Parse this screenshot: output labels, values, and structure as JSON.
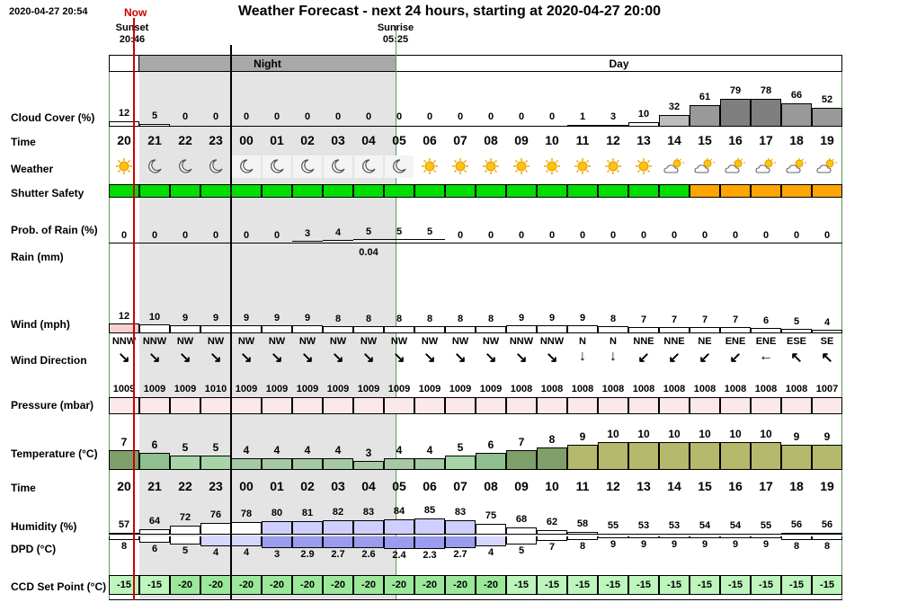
{
  "header": {
    "timestamp": "2020-04-27 20:54",
    "now_label": "Now",
    "title": "Weather Forecast - next 24 hours, starting at 2020-04-27 20:00",
    "sunset_label": "Sunset",
    "sunset_time": "20:46",
    "sunrise_label": "Sunrise",
    "sunrise_time": "05:25"
  },
  "bands": {
    "night": "Night",
    "day": "Day"
  },
  "labels": {
    "cloud_cover": "Cloud Cover (%)",
    "time": "Time",
    "weather": "Weather",
    "shutter_safety": "Shutter Safety",
    "prob_rain": "Prob. of Rain (%)",
    "rain": "Rain (mm)",
    "wind": "Wind (mph)",
    "wind_direction": "Wind Direction",
    "pressure": "Pressure (mbar)",
    "temperature": "Temperature (°C)",
    "time2": "Time",
    "humidity": "Humidity (%)",
    "dpd": "DPD (°C)",
    "ccd": "CCD Set Point (°C)"
  },
  "hours": [
    "20",
    "21",
    "22",
    "23",
    "00",
    "01",
    "02",
    "03",
    "04",
    "05",
    "06",
    "07",
    "08",
    "09",
    "10",
    "11",
    "12",
    "13",
    "14",
    "15",
    "16",
    "17",
    "18",
    "19"
  ],
  "cloud_cover": [
    "12",
    "5",
    "0",
    "0",
    "0",
    "0",
    "0",
    "0",
    "0",
    "0",
    "0",
    "0",
    "0",
    "0",
    "0",
    "1",
    "3",
    "10",
    "32",
    "61",
    "79",
    "78",
    "66",
    "52"
  ],
  "weather_icons": [
    "sun-icon",
    "moon-icon",
    "moon-icon",
    "moon-icon",
    "moon-icon",
    "moon-icon",
    "moon-icon",
    "moon-icon",
    "moon-icon",
    "moon-icon",
    "sun-icon",
    "sun-icon",
    "sun-icon",
    "sun-icon",
    "sun-icon",
    "sun-icon",
    "sun-icon",
    "sun-icon",
    "partly-cloudy-icon",
    "partly-cloudy-icon",
    "partly-cloudy-icon",
    "partly-cloudy-icon",
    "partly-cloudy-icon",
    "partly-cloudy-icon"
  ],
  "shutter_safety": [
    "safe",
    "safe",
    "safe",
    "safe",
    "safe",
    "safe",
    "safe",
    "safe",
    "safe",
    "safe",
    "safe",
    "safe",
    "safe",
    "safe",
    "safe",
    "safe",
    "safe",
    "safe",
    "safe",
    "caution",
    "caution",
    "caution",
    "caution",
    "caution"
  ],
  "shutter_colors": {
    "safe": "#00dd00",
    "caution": "#ffa500"
  },
  "prob_rain": [
    "0",
    "0",
    "0",
    "0",
    "0",
    "0",
    "3",
    "4",
    "5",
    "5",
    "5",
    "0",
    "0",
    "0",
    "0",
    "0",
    "0",
    "0",
    "0",
    "0",
    "0",
    "0",
    "0",
    "0"
  ],
  "rain": [
    "",
    "",
    "",
    "",
    "",
    "",
    "",
    "",
    "0.04",
    "",
    "",
    "",
    "",
    "",
    "",
    "",
    "",
    "",
    "",
    "",
    "",
    "",
    "",
    ""
  ],
  "wind": [
    "12",
    "10",
    "9",
    "9",
    "9",
    "9",
    "9",
    "8",
    "8",
    "8",
    "8",
    "8",
    "8",
    "9",
    "9",
    "9",
    "8",
    "7",
    "7",
    "7",
    "7",
    "6",
    "5",
    "4"
  ],
  "wind_dir": [
    "NNW",
    "NNW",
    "NW",
    "NW",
    "NW",
    "NW",
    "NW",
    "NW",
    "NW",
    "NW",
    "NW",
    "NW",
    "NW",
    "NNW",
    "NNW",
    "N",
    "N",
    "NNE",
    "NNE",
    "NE",
    "ENE",
    "ENE",
    "ESE",
    "SE"
  ],
  "wind_arrows": [
    "↘",
    "↘",
    "↘",
    "↘",
    "↘",
    "↘",
    "↘",
    "↘",
    "↘",
    "↘",
    "↘",
    "↘",
    "↘",
    "↘",
    "↘",
    "↓",
    "↓",
    "↙",
    "↙",
    "↙",
    "↙",
    "←",
    "↖",
    "↖"
  ],
  "pressure": [
    "1009",
    "1009",
    "1009",
    "1010",
    "1009",
    "1009",
    "1009",
    "1009",
    "1009",
    "1009",
    "1009",
    "1009",
    "1009",
    "1008",
    "1008",
    "1008",
    "1008",
    "1008",
    "1008",
    "1008",
    "1008",
    "1008",
    "1008",
    "1007"
  ],
  "temperature": [
    "7",
    "6",
    "5",
    "5",
    "4",
    "4",
    "4",
    "4",
    "3",
    "4",
    "4",
    "5",
    "6",
    "7",
    "8",
    "9",
    "10",
    "10",
    "10",
    "10",
    "10",
    "10",
    "9",
    "9"
  ],
  "humidity": [
    "57",
    "64",
    "72",
    "76",
    "78",
    "80",
    "81",
    "82",
    "83",
    "84",
    "85",
    "83",
    "75",
    "68",
    "62",
    "58",
    "55",
    "53",
    "53",
    "54",
    "54",
    "55",
    "56",
    "56"
  ],
  "dpd": [
    "8",
    "6",
    "5",
    "4",
    "4",
    "3",
    "2.9",
    "2.7",
    "2.6",
    "2.4",
    "2.3",
    "2.7",
    "4",
    "5",
    "7",
    "8",
    "9",
    "9",
    "9",
    "9",
    "9",
    "9",
    "8",
    "8"
  ],
  "ccd": [
    "-15",
    "-15",
    "-20",
    "-20",
    "-20",
    "-20",
    "-20",
    "-20",
    "-20",
    "-20",
    "-20",
    "-20",
    "-20",
    "-15",
    "-15",
    "-15",
    "-15",
    "-15",
    "-15",
    "-15",
    "-15",
    "-15",
    "-15",
    "-15"
  ]
}
